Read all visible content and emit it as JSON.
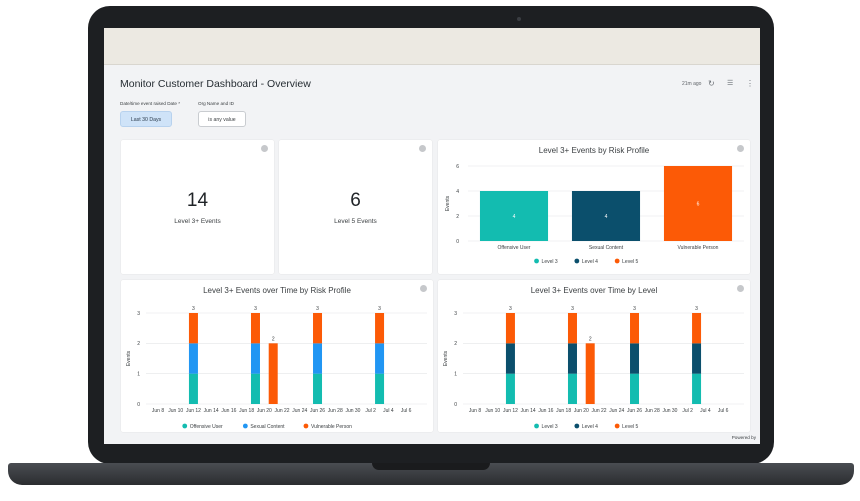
{
  "dashboard": {
    "title": "Monitor Customer Dashboard - Overview",
    "last_updated": "21m ago",
    "footer": "Powered by"
  },
  "filters": [
    {
      "label": "Date/time event raised Date *",
      "value": "Last 30 Days"
    },
    {
      "label": "Org Name and ID",
      "value": "is any value"
    }
  ],
  "kpis": [
    {
      "value": "14",
      "label": "Level 3+ Events"
    },
    {
      "value": "6",
      "label": "Level 5 Events"
    }
  ],
  "colors": {
    "offensive_user": "#13bcb0",
    "sexual_content": "#2196f3",
    "vulnerable_person": "#fc5a06",
    "level3": "#13bcb0",
    "level4": "#0b4f6c",
    "level5": "#fc5a06"
  },
  "chart_data": [
    {
      "type": "bar",
      "title": "Level 3+ Events by Risk Profile",
      "ylabel": "Events",
      "ylim": [
        0,
        6
      ],
      "yticks": [
        "0",
        "2",
        "4",
        "6"
      ],
      "categories": [
        "Offensive User",
        "Sexual Content",
        "Vulnerable Person"
      ],
      "values": [
        4,
        4,
        6
      ],
      "bar_colors": [
        "#13bcb0",
        "#0b4f6c",
        "#fc5a06"
      ],
      "data_labels": [
        "4",
        "4",
        "6"
      ],
      "legend": [
        {
          "name": "Level 3",
          "color": "#13bcb0"
        },
        {
          "name": "Level 4",
          "color": "#0b4f6c"
        },
        {
          "name": "Level 5",
          "color": "#fc5a06"
        }
      ],
      "legend_position": "bottom"
    },
    {
      "type": "bar",
      "title": "Level 3+ Events over Time by Risk Profile",
      "ylabel": "Events",
      "ylim": [
        0,
        3
      ],
      "yticks": [
        "0",
        "1",
        "2",
        "3"
      ],
      "xticks": [
        "Jun 8",
        "Jun 10",
        "Jun 12",
        "Jun 14",
        "Jun 16",
        "Jun 18",
        "Jun 20",
        "Jun 22",
        "Jun 24",
        "Jun 26",
        "Jun 28",
        "Jun 30",
        "Jul 2",
        "Jul 4",
        "Jul 6"
      ],
      "x_start": "Jun 8",
      "x_end": "Jul 7",
      "stacks": [
        {
          "date": "Jun 12",
          "total": "3",
          "segments": [
            1,
            1,
            1
          ]
        },
        {
          "date": "Jun 19",
          "total": "3",
          "segments": [
            1,
            1,
            1
          ]
        },
        {
          "date": "Jun 21",
          "total": "2",
          "segments": [
            0,
            0,
            2
          ]
        },
        {
          "date": "Jun 26",
          "total": "3",
          "segments": [
            1,
            1,
            1
          ]
        },
        {
          "date": "Jul 3",
          "total": "3",
          "segments": [
            1,
            1,
            1
          ]
        }
      ],
      "series": [
        {
          "name": "Offensive User",
          "color": "#13bcb0"
        },
        {
          "name": "Sexual Content",
          "color": "#2196f3"
        },
        {
          "name": "Vulnerable Person",
          "color": "#fc5a06"
        }
      ],
      "legend_position": "bottom"
    },
    {
      "type": "bar",
      "title": "Level 3+ Events over Time by Level",
      "ylabel": "Events",
      "ylim": [
        0,
        3
      ],
      "yticks": [
        "0",
        "1",
        "2",
        "3"
      ],
      "xticks": [
        "Jun 8",
        "Jun 10",
        "Jun 12",
        "Jun 14",
        "Jun 16",
        "Jun 18",
        "Jun 20",
        "Jun 22",
        "Jun 24",
        "Jun 26",
        "Jun 28",
        "Jun 30",
        "Jul 2",
        "Jul 4",
        "Jul 6"
      ],
      "x_start": "Jun 8",
      "x_end": "Jul 7",
      "stacks": [
        {
          "date": "Jun 12",
          "total": "3",
          "segments": [
            1,
            1,
            1
          ]
        },
        {
          "date": "Jun 19",
          "total": "3",
          "segments": [
            1,
            1,
            1
          ]
        },
        {
          "date": "Jun 21",
          "total": "2",
          "segments": [
            0,
            0,
            2
          ]
        },
        {
          "date": "Jun 26",
          "total": "3",
          "segments": [
            1,
            1,
            1
          ]
        },
        {
          "date": "Jul 3",
          "total": "3",
          "segments": [
            1,
            1,
            1
          ]
        }
      ],
      "series": [
        {
          "name": "Level 3",
          "color": "#13bcb0"
        },
        {
          "name": "Level 4",
          "color": "#0b4f6c"
        },
        {
          "name": "Level 5",
          "color": "#fc5a06"
        }
      ],
      "legend_position": "bottom"
    }
  ]
}
